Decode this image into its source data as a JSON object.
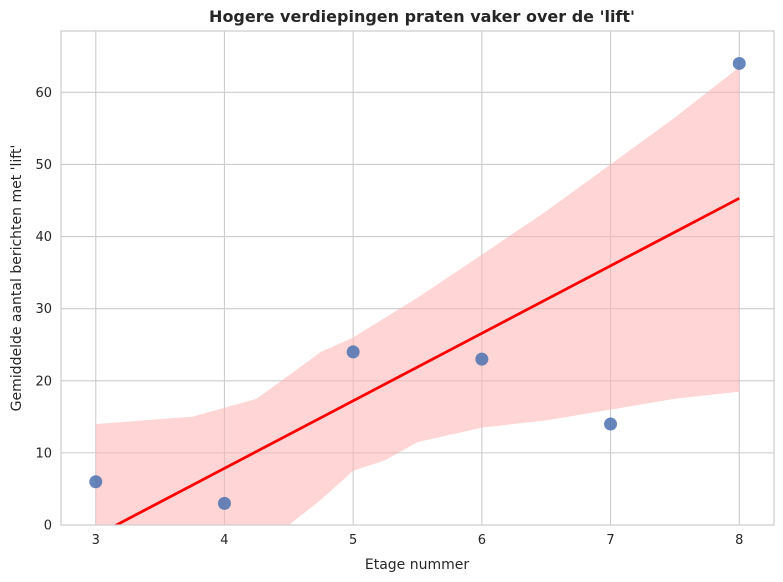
{
  "chart_data": {
    "type": "scatter",
    "title": "Hogere verdiepingen praten vaker over de 'lift'",
    "xlabel": "Etage nummer",
    "ylabel": "Gemiddelde aantal berichten met 'lift'",
    "xlim": [
      2.73,
      8.27
    ],
    "ylim": [
      0,
      68.5
    ],
    "xticks": [
      3,
      4,
      5,
      6,
      7,
      8
    ],
    "yticks": [
      0,
      10,
      20,
      30,
      40,
      50,
      60
    ],
    "grid": true,
    "points": [
      {
        "x": 3,
        "y": 6
      },
      {
        "x": 4,
        "y": 3
      },
      {
        "x": 5,
        "y": 24
      },
      {
        "x": 6,
        "y": 23
      },
      {
        "x": 7,
        "y": 14
      },
      {
        "x": 8,
        "y": 64
      }
    ],
    "regression": {
      "x": [
        3,
        8
      ],
      "y": [
        -1.5,
        45.3
      ],
      "ci_upper": [
        [
          3,
          14
        ],
        [
          3.75,
          15
        ],
        [
          4.25,
          17.5
        ],
        [
          4.75,
          24
        ],
        [
          5,
          26
        ],
        [
          5.5,
          31.5
        ],
        [
          6,
          37.5
        ],
        [
          6.5,
          43.5
        ],
        [
          7,
          50
        ],
        [
          7.5,
          56.5
        ],
        [
          8,
          63.5
        ]
      ],
      "ci_lower": [
        [
          3,
          -8
        ],
        [
          3.5,
          -10
        ],
        [
          4,
          -5
        ],
        [
          4.5,
          0
        ],
        [
          4.75,
          3.5
        ],
        [
          5,
          7.5
        ],
        [
          5.25,
          9
        ],
        [
          5.5,
          11.5
        ],
        [
          6,
          13.5
        ],
        [
          6.5,
          14.5
        ],
        [
          7,
          16
        ],
        [
          7.5,
          17.5
        ],
        [
          8,
          18.5
        ]
      ]
    },
    "colors": {
      "points": "#4c72b0",
      "line": "#ff0000",
      "band": "#ffb3b3",
      "grid": "#cccccc",
      "text": "#262626"
    }
  }
}
